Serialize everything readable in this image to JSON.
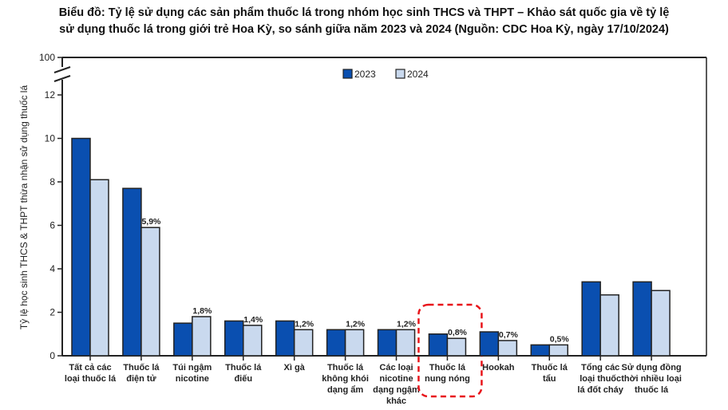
{
  "chart_data": {
    "type": "bar",
    "title": "Biểu đồ: Tỷ lệ sử dụng các sản phẩm thuốc lá trong nhóm học sinh THCS và THPT – Khảo sát quốc gia về tỷ lệ sử dụng thuốc lá trong giới trẻ Hoa Kỳ, so sánh giữa năm 2023 và 2024 (Nguồn: CDC Hoa Kỳ, ngày 17/10/2024)",
    "title_lines": [
      "Biểu đồ: Tỷ lệ sử dụng các sản phẩm thuốc lá trong nhóm học sinh THCS và THPT – Khảo sát quốc gia về tỷ lệ",
      "sử dụng thuốc lá trong giới trẻ Hoa Kỳ, so sánh giữa năm 2023 và 2024 (Nguồn: CDC Hoa Kỳ, ngày 17/10/2024)"
    ],
    "xlabel": "",
    "ylabel": "Tỷ lệ học sinh THCS & THPT thừa nhận sử dụng thuốc lá",
    "ylim": [
      0,
      12
    ],
    "y_break_top": 100,
    "yticks": [
      "0",
      "2",
      "4",
      "6",
      "8",
      "10",
      "12",
      "100"
    ],
    "grid": false,
    "legend_position": "top-center",
    "categories": [
      [
        "Tất cả các",
        "loại thuốc lá"
      ],
      [
        "Thuốc lá",
        "điện tử"
      ],
      [
        "Túi ngậm",
        "nicotine"
      ],
      [
        "Thuốc lá",
        "điếu"
      ],
      [
        "Xì gà"
      ],
      [
        "Thuốc lá",
        "không khói",
        "dạng ẩm"
      ],
      [
        "Các loại",
        "nicotine",
        "dạng ngậm",
        "khác"
      ],
      [
        "Thuốc lá",
        "nung nóng"
      ],
      [
        "Hookah"
      ],
      [
        "Thuốc lá",
        "tẩu"
      ],
      [
        "Tổng các",
        "loại thuốc",
        "lá đốt cháy"
      ],
      [
        "Sử dụng đồng",
        "thời nhiều loại",
        "thuốc lá"
      ]
    ],
    "series": [
      {
        "name": "2023",
        "color": "#0a4fb0",
        "values": [
          10.0,
          7.7,
          1.5,
          1.6,
          1.6,
          1.2,
          1.2,
          1.0,
          1.1,
          0.5,
          3.4,
          3.4
        ]
      },
      {
        "name": "2024",
        "color": "#c9d9ee",
        "values": [
          8.1,
          5.9,
          1.8,
          1.4,
          1.2,
          1.2,
          1.2,
          0.8,
          0.7,
          0.5,
          2.8,
          3.0
        ]
      }
    ],
    "data_labels_2024": [
      null,
      "5,9%",
      "1,8%",
      "1,4%",
      "1,2%",
      "1,2%",
      "1,2%",
      "0,8%",
      "0,7%",
      "0,5%",
      null,
      null
    ],
    "highlight_category": "Thuốc lá nung nóng",
    "highlight_color": "#e8151b"
  }
}
